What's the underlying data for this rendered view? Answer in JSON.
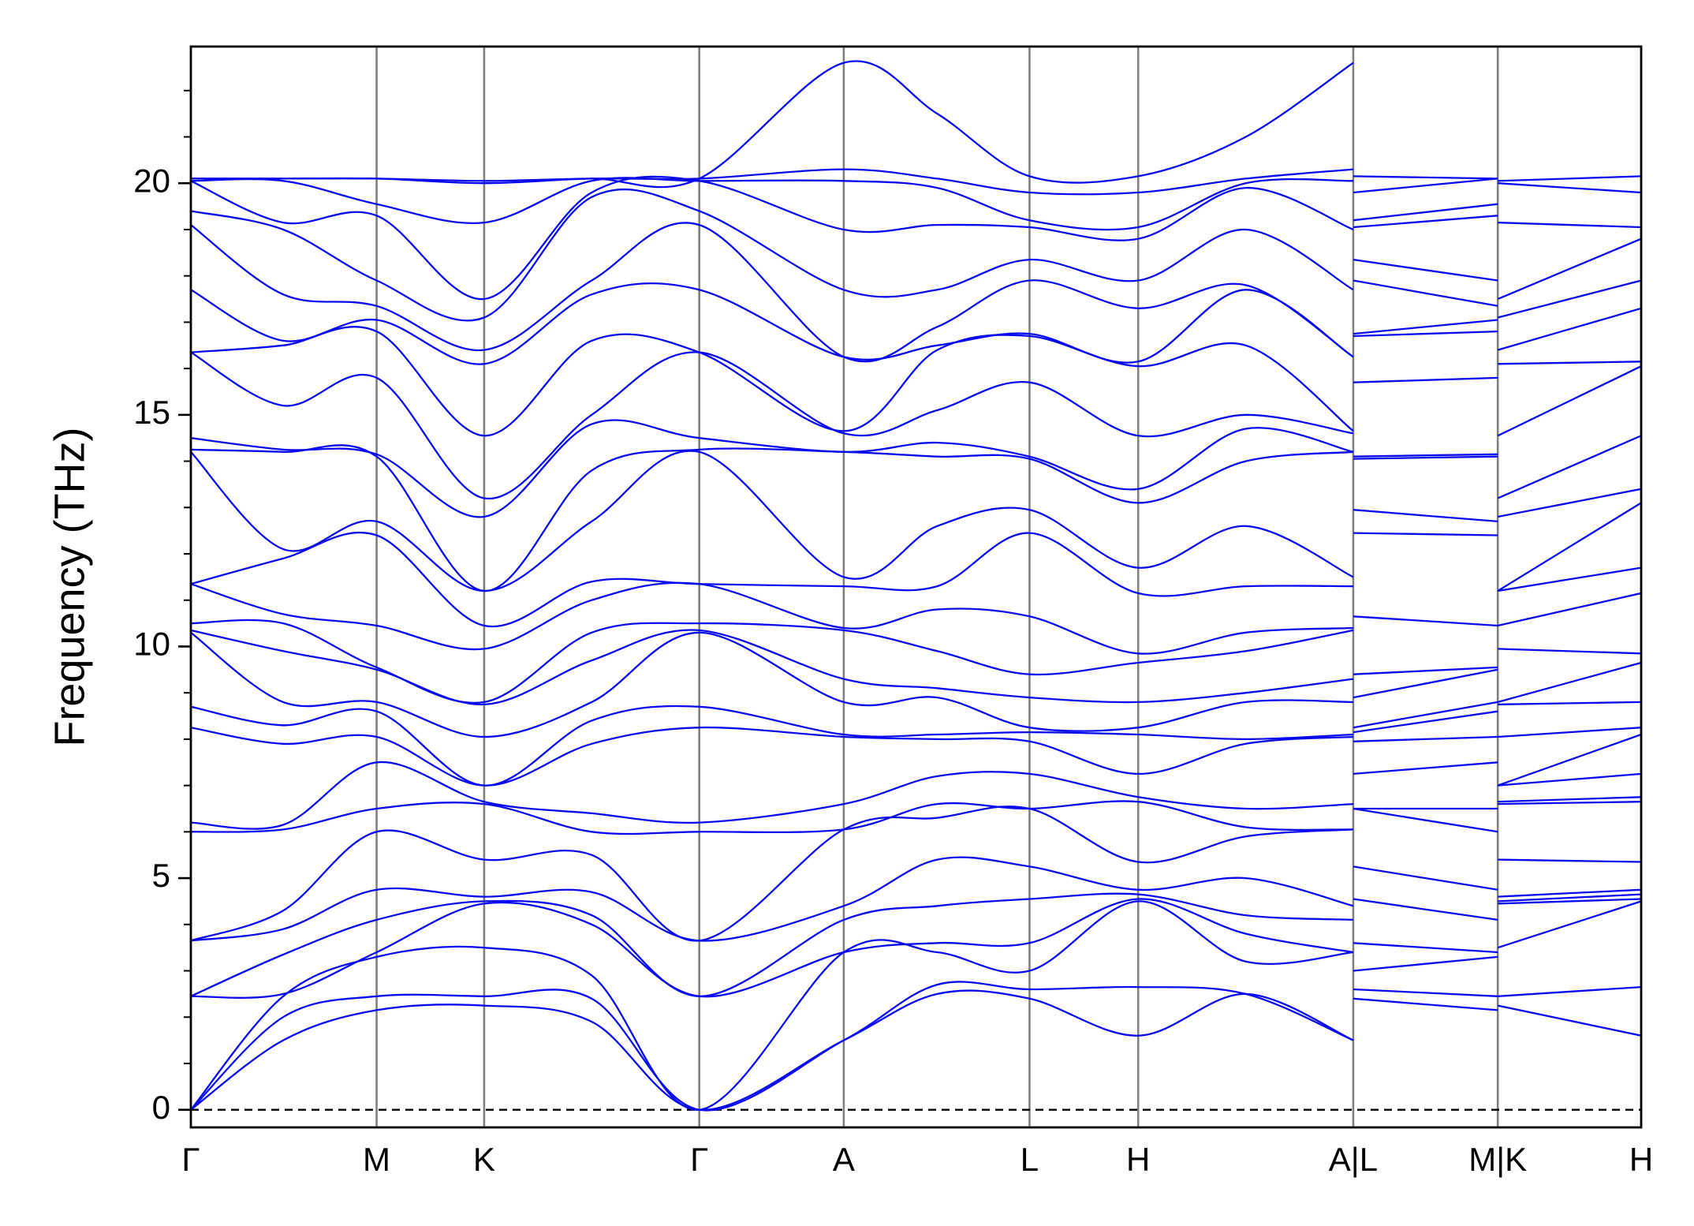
{
  "chart_data": {
    "type": "line",
    "ylabel": "Frequency (THz)",
    "color": "#0a0aee",
    "x": [
      0,
      0.85,
      1.71,
      2.7,
      3.69,
      4.68,
      6.01,
      6.87,
      7.72,
      8.72,
      9.71,
      10.7,
      10.7,
      10.7,
      12.03,
      12.03,
      12.03,
      13.35
    ],
    "xlim": [
      0,
      13.35
    ],
    "xticks": [
      {
        "value": 0,
        "label": "Γ"
      },
      {
        "value": 1.71,
        "label": "M"
      },
      {
        "value": 2.7,
        "label": "K"
      },
      {
        "value": 4.68,
        "label": "Γ"
      },
      {
        "value": 6.01,
        "label": "A"
      },
      {
        "value": 7.72,
        "label": "L"
      },
      {
        "value": 8.72,
        "label": "H"
      },
      {
        "value": 10.7,
        "label": "A|L"
      },
      {
        "value": 12.03,
        "label": "M|K"
      },
      {
        "value": 13.35,
        "label": "H"
      }
    ],
    "ylim": [
      -0.38,
      22.95
    ],
    "yticks": [
      0,
      5,
      10,
      15,
      20
    ],
    "yminorticks": [
      1,
      2,
      3,
      4,
      6,
      7,
      8,
      9,
      11,
      12,
      13,
      14,
      16,
      17,
      18,
      19,
      21,
      22
    ],
    "reference_line": 0,
    "series": [
      {
        "values": [
          0,
          1.5,
          2.15,
          2.25,
          1.9,
          0,
          1.5,
          2.5,
          2.4,
          1.6,
          2.5,
          1.5,
          null,
          2.4,
          2.15,
          null,
          2.25,
          1.6
        ]
      },
      {
        "values": [
          0,
          2.0,
          2.45,
          2.45,
          2.4,
          0,
          1.5,
          2.7,
          2.6,
          2.65,
          2.5,
          1.5,
          null,
          2.6,
          2.45,
          null,
          2.45,
          2.65
        ]
      },
      {
        "values": [
          0,
          2.45,
          3.3,
          3.5,
          2.9,
          0,
          3.4,
          3.4,
          3.0,
          4.5,
          3.2,
          3.4,
          null,
          3.0,
          3.3,
          null,
          3.5,
          4.5
        ]
      },
      {
        "values": [
          2.45,
          2.5,
          3.4,
          4.45,
          4.0,
          2.45,
          3.4,
          3.6,
          3.6,
          4.55,
          3.8,
          3.4,
          null,
          3.6,
          3.4,
          null,
          4.45,
          4.55
        ]
      },
      {
        "values": [
          2.45,
          3.35,
          4.1,
          4.5,
          4.2,
          2.45,
          4.1,
          4.4,
          4.55,
          4.65,
          4.2,
          4.1,
          null,
          4.55,
          4.1,
          null,
          4.5,
          4.65
        ]
      },
      {
        "values": [
          3.65,
          3.9,
          4.75,
          4.6,
          4.7,
          3.65,
          4.4,
          5.4,
          5.25,
          4.75,
          5.0,
          4.4,
          null,
          5.25,
          4.75,
          null,
          4.6,
          4.75
        ]
      },
      {
        "values": [
          3.65,
          4.3,
          6.0,
          5.4,
          5.5,
          3.65,
          6.05,
          6.3,
          6.5,
          5.35,
          5.9,
          6.05,
          null,
          6.5,
          6.0,
          null,
          5.4,
          5.35
        ]
      },
      {
        "values": [
          6.0,
          6.05,
          6.5,
          6.6,
          6.0,
          6.0,
          6.05,
          6.6,
          6.5,
          6.65,
          6.1,
          6.05,
          null,
          6.5,
          6.5,
          null,
          6.6,
          6.65
        ]
      },
      {
        "values": [
          6.2,
          6.15,
          7.5,
          6.65,
          6.4,
          6.2,
          6.6,
          7.2,
          7.25,
          6.75,
          6.5,
          6.6,
          null,
          7.25,
          7.5,
          null,
          6.65,
          6.75
        ]
      },
      {
        "values": [
          8.25,
          7.9,
          8.05,
          7.0,
          7.9,
          8.25,
          8.05,
          8.0,
          7.95,
          7.25,
          7.9,
          8.05,
          null,
          7.95,
          8.05,
          null,
          7.0,
          7.25
        ]
      },
      {
        "values": [
          8.7,
          8.3,
          8.6,
          7.0,
          8.4,
          8.7,
          8.1,
          8.1,
          8.15,
          8.1,
          8.0,
          8.1,
          null,
          8.15,
          8.6,
          null,
          7.0,
          8.1
        ]
      },
      {
        "values": [
          10.3,
          8.8,
          8.8,
          8.05,
          8.8,
          10.3,
          8.8,
          8.9,
          8.25,
          8.25,
          8.8,
          8.8,
          null,
          8.25,
          8.8,
          null,
          8.05,
          8.25
        ]
      },
      {
        "values": [
          10.35,
          9.9,
          9.5,
          8.75,
          9.7,
          10.35,
          9.3,
          9.1,
          8.9,
          8.8,
          9.0,
          9.3,
          null,
          8.9,
          9.5,
          null,
          8.75,
          8.8
        ]
      },
      {
        "values": [
          10.5,
          10.5,
          9.55,
          8.8,
          10.3,
          10.5,
          10.35,
          9.9,
          9.4,
          9.65,
          9.9,
          10.35,
          null,
          9.4,
          9.55,
          null,
          8.8,
          9.65
        ]
      },
      {
        "values": [
          11.35,
          10.7,
          10.45,
          9.95,
          11.0,
          11.35,
          10.4,
          10.8,
          10.65,
          9.85,
          10.3,
          10.4,
          null,
          10.65,
          10.45,
          null,
          9.95,
          9.85
        ]
      },
      {
        "values": [
          11.35,
          11.9,
          12.4,
          10.45,
          11.4,
          11.35,
          11.3,
          11.3,
          12.45,
          11.15,
          11.3,
          11.3,
          null,
          12.45,
          12.4,
          null,
          10.45,
          11.15
        ]
      },
      {
        "values": [
          14.2,
          12.1,
          12.7,
          11.2,
          12.7,
          14.2,
          11.5,
          12.6,
          12.95,
          11.7,
          12.6,
          11.5,
          null,
          12.95,
          12.7,
          null,
          11.2,
          11.7
        ]
      },
      {
        "values": [
          14.25,
          14.2,
          14.1,
          11.2,
          13.8,
          14.25,
          14.2,
          14.1,
          14.05,
          13.1,
          14.0,
          14.2,
          null,
          14.05,
          14.1,
          null,
          11.2,
          13.1
        ]
      },
      {
        "values": [
          14.5,
          14.25,
          14.15,
          12.8,
          14.8,
          14.5,
          14.2,
          14.4,
          14.1,
          13.4,
          14.7,
          14.2,
          null,
          14.1,
          14.15,
          null,
          12.8,
          13.4
        ]
      },
      {
        "values": [
          16.35,
          15.2,
          15.8,
          13.2,
          15.0,
          16.35,
          14.6,
          15.1,
          15.7,
          14.55,
          15.0,
          14.6,
          null,
          15.7,
          15.8,
          null,
          13.2,
          14.55
        ]
      },
      {
        "values": [
          16.35,
          16.5,
          16.8,
          14.55,
          16.6,
          16.35,
          14.65,
          16.4,
          16.7,
          16.05,
          16.5,
          14.65,
          null,
          16.7,
          16.8,
          null,
          14.55,
          16.05
        ]
      },
      {
        "values": [
          17.7,
          16.6,
          17.05,
          16.1,
          17.6,
          17.7,
          16.25,
          16.5,
          16.75,
          16.15,
          17.7,
          16.25,
          null,
          16.75,
          17.05,
          null,
          16.1,
          16.15
        ]
      },
      {
        "values": [
          19.1,
          17.6,
          17.35,
          16.4,
          17.9,
          19.1,
          16.25,
          16.9,
          17.9,
          17.3,
          17.8,
          16.25,
          null,
          17.9,
          17.35,
          null,
          16.4,
          17.3
        ]
      },
      {
        "values": [
          19.4,
          19.0,
          17.9,
          17.1,
          19.7,
          19.4,
          17.7,
          17.7,
          18.35,
          17.9,
          19.0,
          17.7,
          null,
          18.35,
          17.9,
          null,
          17.1,
          17.9
        ]
      },
      {
        "values": [
          20.05,
          19.15,
          19.3,
          17.5,
          19.8,
          20.05,
          19.0,
          19.1,
          19.05,
          18.8,
          19.9,
          19.0,
          null,
          19.05,
          19.3,
          null,
          17.5,
          18.8
        ]
      },
      {
        "values": [
          20.05,
          20.05,
          19.55,
          19.15,
          20.05,
          20.05,
          20.05,
          19.9,
          19.2,
          19.05,
          20.0,
          20.05,
          null,
          19.2,
          19.55,
          null,
          19.15,
          19.05
        ]
      },
      {
        "values": [
          20.1,
          20.1,
          20.1,
          20.0,
          20.1,
          20.1,
          20.3,
          20.1,
          19.8,
          19.8,
          20.1,
          20.3,
          null,
          19.8,
          20.1,
          null,
          20.0,
          19.8
        ]
      },
      {
        "values": [
          20.1,
          20.1,
          20.1,
          20.05,
          20.1,
          20.1,
          22.6,
          21.5,
          20.15,
          20.15,
          21.0,
          22.6,
          null,
          20.15,
          20.1,
          null,
          20.05,
          20.15
        ]
      }
    ]
  }
}
